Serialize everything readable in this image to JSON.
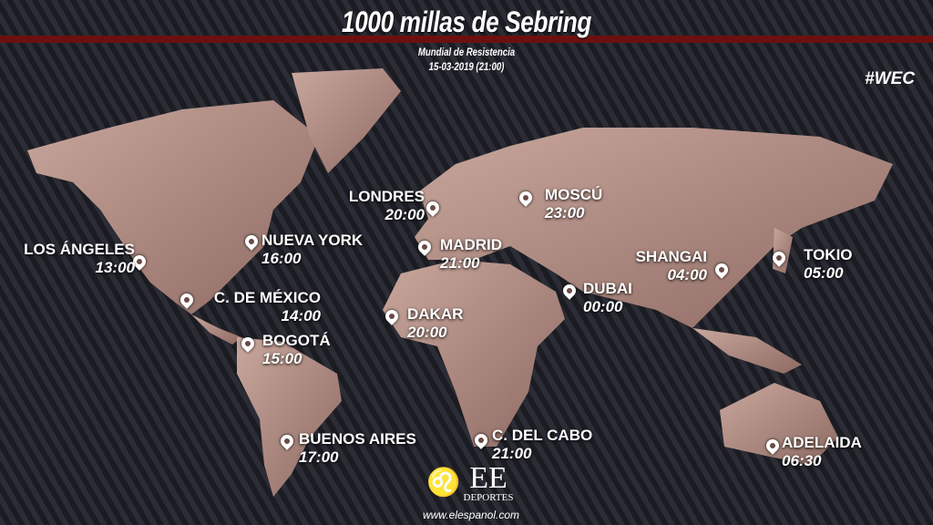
{
  "header": {
    "title": "1000 millas de Sebring",
    "subtitle": "Mundial de Resistencia",
    "date": "15-03-2019 (21:00)",
    "hashtag": "#WEC"
  },
  "colors": {
    "land": "#b08a80",
    "band": "#6b1010",
    "background": "#25262e"
  },
  "cities": [
    {
      "name": "LOS ÁNGELES",
      "time": "13:00"
    },
    {
      "name": "NUEVA YORK",
      "time": "16:00"
    },
    {
      "name": "C. DE MÉXICO",
      "time": "14:00"
    },
    {
      "name": "BOGOTÁ",
      "time": "15:00"
    },
    {
      "name": "BUENOS AIRES",
      "time": "17:00"
    },
    {
      "name": "LONDRES",
      "time": "20:00"
    },
    {
      "name": "MADRID",
      "time": "21:00"
    },
    {
      "name": "MOSCÚ",
      "time": "23:00"
    },
    {
      "name": "DAKAR",
      "time": "20:00"
    },
    {
      "name": "DUBAI",
      "time": "00:00"
    },
    {
      "name": "SHANGAI",
      "time": "04:00"
    },
    {
      "name": "TOKIO",
      "time": "05:00"
    },
    {
      "name": "C. DEL CABO",
      "time": "21:00"
    },
    {
      "name": "ADELAIDA",
      "time": "06:30"
    }
  ],
  "logo": {
    "mark": "EE",
    "label": "DEPORTES",
    "url": "www.elespanol.com"
  }
}
